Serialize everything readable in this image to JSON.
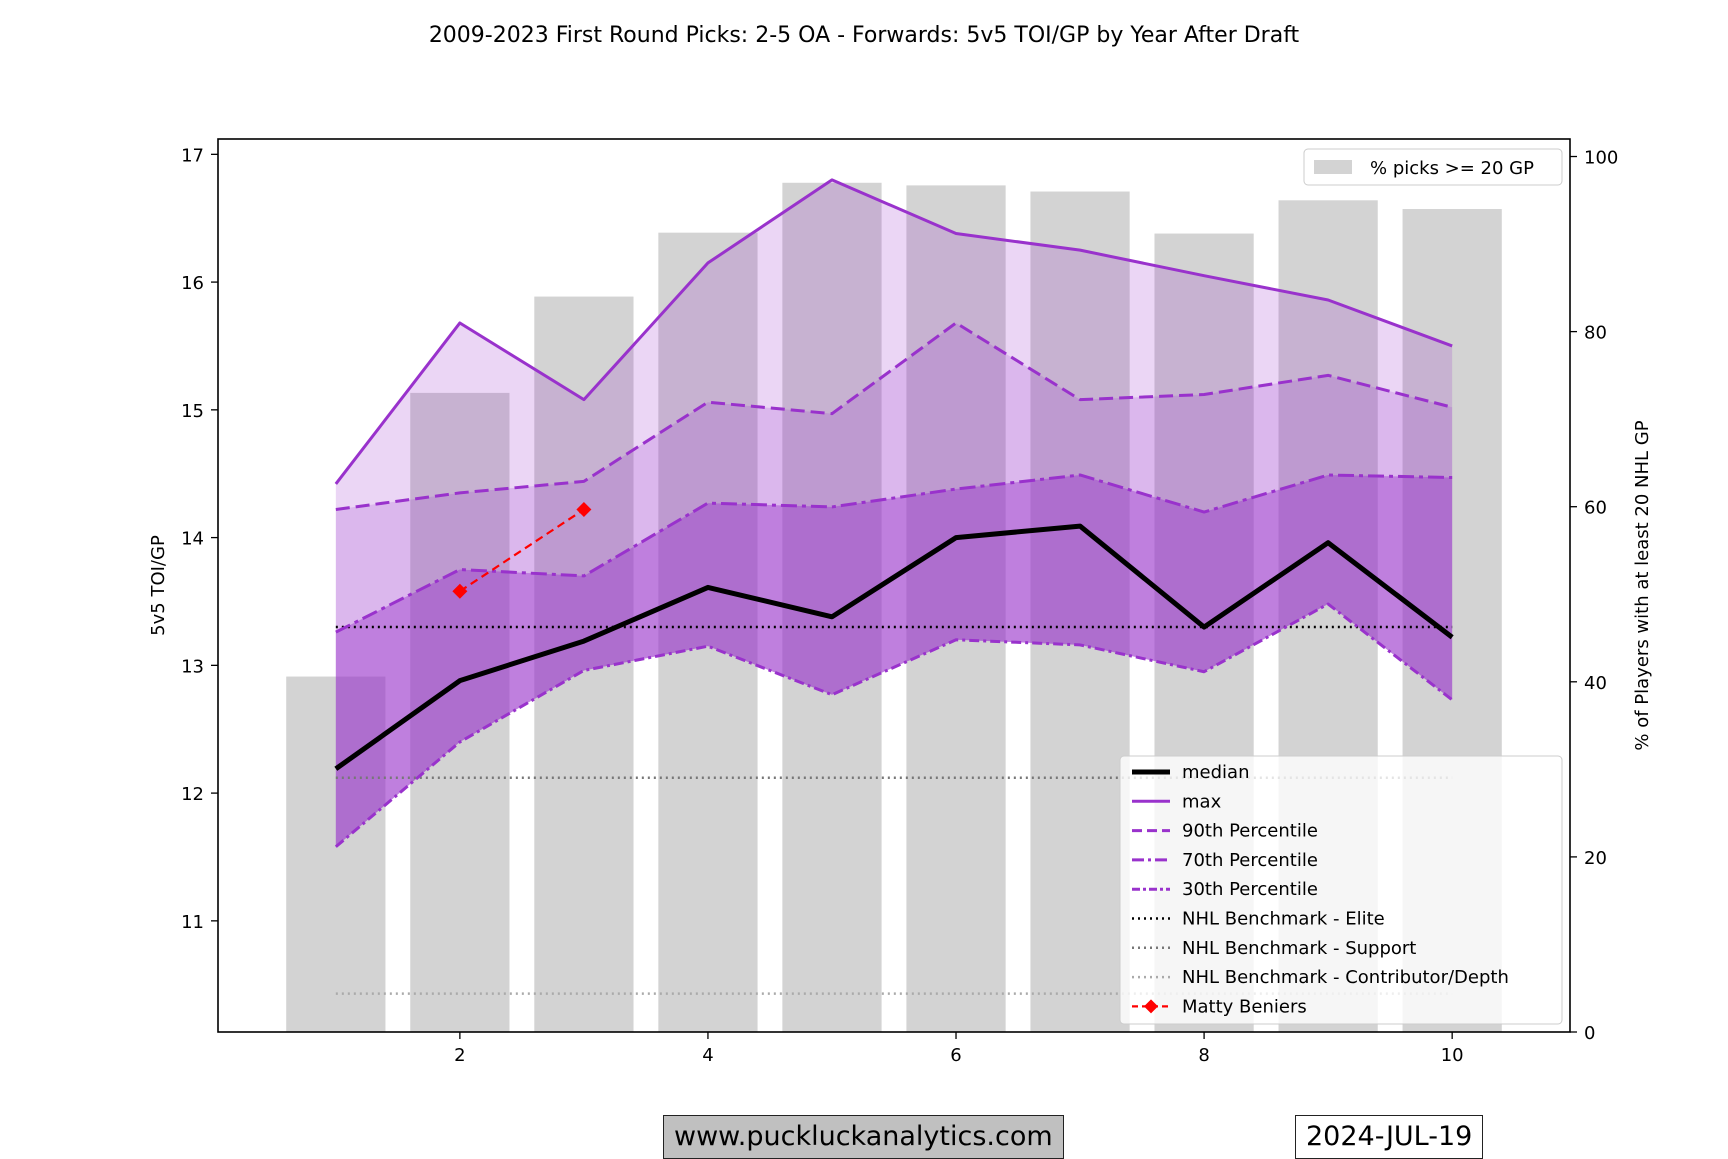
{
  "chart_data": {
    "type": "line",
    "title": "2009-2023 First Round Picks: 2-5 OA - Forwards: 5v5 TOI/GP by Year After Draft",
    "xlabel": "",
    "ylabel": "5v5 TOI/GP",
    "y2label": "% of Players with at least 20 NHL GP",
    "xlim": [
      0.05,
      10.95
    ],
    "ylim": [
      10.13,
      17.12
    ],
    "y2lim": [
      0,
      102
    ],
    "xticks": [
      2,
      4,
      6,
      8,
      10
    ],
    "yticks": [
      11,
      12,
      13,
      14,
      15,
      16,
      17
    ],
    "y2ticks": [
      0,
      20,
      40,
      60,
      80,
      100
    ],
    "x": [
      1,
      2,
      3,
      4,
      5,
      6,
      7,
      8,
      9,
      10
    ],
    "bars": {
      "name": "% picks >= 20 GP",
      "color": "#d3d3d3",
      "values": [
        40.6,
        73.0,
        84.0,
        91.3,
        97.0,
        96.7,
        96.0,
        91.2,
        95.0,
        94.0
      ]
    },
    "series": [
      {
        "name": "max",
        "color": "#9932cc",
        "style": "solid",
        "values": [
          14.42,
          15.68,
          15.08,
          16.15,
          16.8,
          16.38,
          16.25,
          16.05,
          15.86,
          15.5
        ]
      },
      {
        "name": "90th Percentile",
        "color": "#9932cc",
        "style": "dashed",
        "values": [
          14.22,
          14.35,
          14.44,
          15.06,
          14.97,
          15.68,
          15.08,
          15.12,
          15.27,
          15.02
        ]
      },
      {
        "name": "70th Percentile",
        "color": "#9932cc",
        "style": "dashdot",
        "values": [
          13.26,
          13.75,
          13.7,
          14.27,
          14.24,
          14.38,
          14.49,
          14.2,
          14.49,
          14.47
        ]
      },
      {
        "name": "30th Percentile",
        "color": "#9932cc",
        "style": "dashdot-tight",
        "values": [
          11.58,
          12.4,
          12.96,
          13.15,
          12.77,
          13.2,
          13.16,
          12.95,
          13.48,
          12.73
        ]
      },
      {
        "name": "median",
        "color": "#000000",
        "style": "solid-thick",
        "values": [
          12.19,
          12.88,
          13.19,
          13.61,
          13.38,
          14.0,
          14.09,
          13.3,
          13.96,
          13.22
        ]
      }
    ],
    "benchmarks": [
      {
        "name": "NHL Benchmark - Elite",
        "value": 13.3,
        "color": "#000000"
      },
      {
        "name": "NHL Benchmark - Support",
        "value": 12.12,
        "color": "#777777"
      },
      {
        "name": "NHL Benchmark - Contributor/Depth",
        "value": 10.43,
        "color": "#aaaaaa"
      }
    ],
    "player": {
      "name": "Matty Beniers",
      "color": "#ff0000",
      "x": [
        2,
        3
      ],
      "values": [
        13.58,
        14.22
      ]
    },
    "legend_top": {
      "placement": "top-right",
      "label": "% picks >= 20 GP"
    },
    "legend_main": {
      "placement": "lower-right",
      "labels": [
        "median",
        "max",
        "90th Percentile",
        "70th Percentile",
        "30th Percentile",
        "NHL Benchmark - Elite",
        "NHL Benchmark - Support",
        "NHL Benchmark - Contributor/Depth",
        "Matty Beniers"
      ]
    }
  },
  "footer": {
    "website": "www.puckluckanalytics.com",
    "date": "2024-JUL-19"
  }
}
